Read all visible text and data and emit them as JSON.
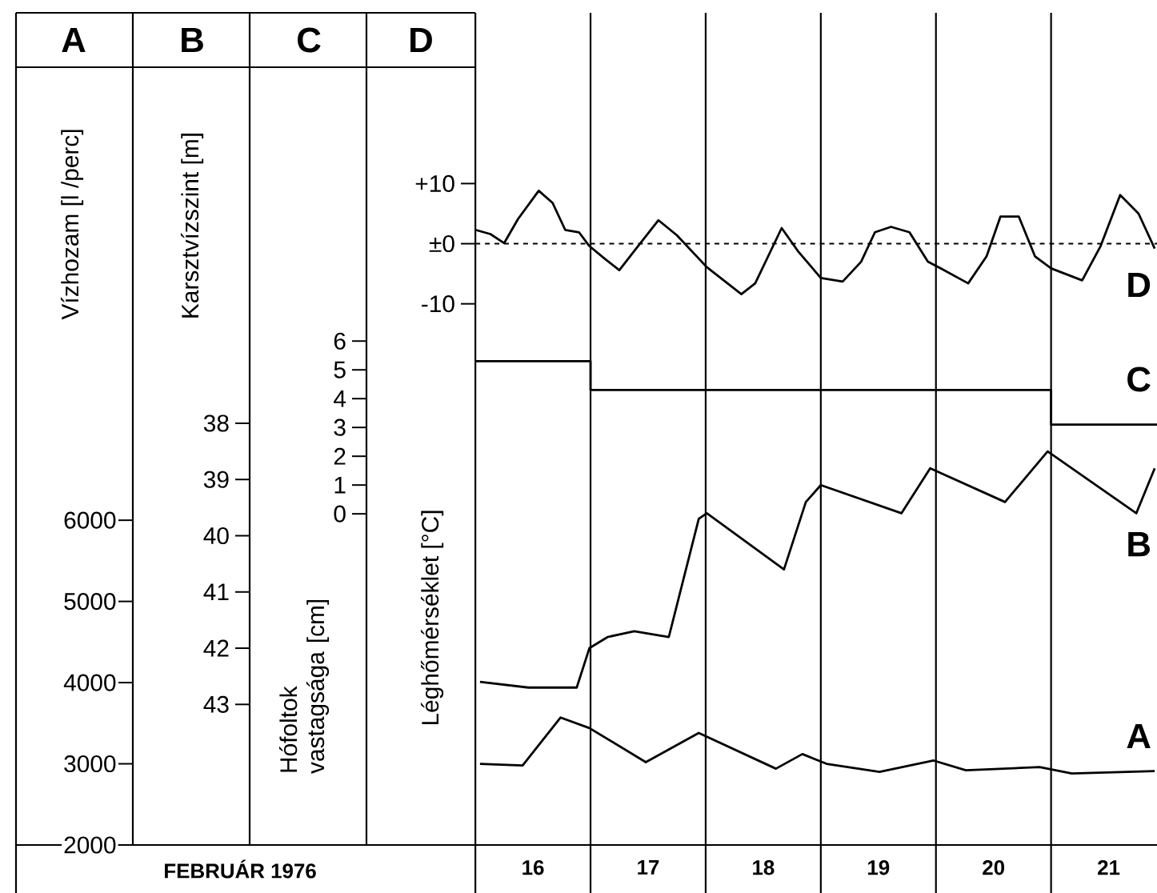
{
  "chart_data": [
    {
      "type": "line",
      "xlabel": "FEBRUÁR 1976",
      "ylabel": "Vízhozam [l /perc]",
      "xlim": [
        12.01,
        21.92
      ],
      "xticks": [
        {
          "value": 16,
          "label": null
        },
        {
          "value": 16.5,
          "label": "16"
        },
        {
          "value": 17.5,
          "label": "17"
        },
        {
          "value": 18.5,
          "label": "18"
        },
        {
          "value": 19.5,
          "label": "19"
        },
        {
          "value": 20.5,
          "label": "20"
        },
        {
          "value": 21.5,
          "label": "21"
        },
        {
          "value": 17,
          "label": null
        },
        {
          "value": 18,
          "label": null
        },
        {
          "value": 19,
          "label": null
        },
        {
          "value": 20,
          "label": null
        },
        {
          "value": 21,
          "label": null
        }
      ],
      "ylim": [
        2000,
        12250
      ],
      "yticks": [
        2000,
        3000,
        4000,
        5000,
        6000
      ],
      "grid": "x",
      "series": [
        {
          "name": "A",
          "color": "#000000",
          "x": [
            16.04,
            16.41,
            16.74,
            16.99,
            17.48,
            17.94,
            18.61,
            18.84,
            19.05,
            19.51,
            19.98,
            20.26,
            20.9,
            21.18,
            21.9
          ],
          "values": [
            3000,
            2980,
            3570,
            3440,
            3020,
            3380,
            2940,
            3120,
            3000,
            2900,
            3040,
            2920,
            2960,
            2880,
            2910
          ]
        }
      ]
    },
    {
      "type": "line",
      "ylabel": "Karsztvízszint [m]",
      "xlim": [
        12.01,
        21.92
      ],
      "ylim": [
        45.5,
        30.7
      ],
      "yticks": [
        38,
        39,
        40,
        41,
        42,
        43
      ],
      "tick_labels": "y",
      "series": [
        {
          "name": "B",
          "color": "#000000",
          "x": [
            16.04,
            16.46,
            16.88,
            16.99,
            17.15,
            17.38,
            17.68,
            17.94,
            18.01,
            18.68,
            18.87,
            19.0,
            19.7,
            19.95,
            20.6,
            20.97,
            21.74,
            21.9
          ],
          "values": [
            42.6,
            42.7,
            42.7,
            42.0,
            41.8,
            41.7,
            41.8,
            39.7,
            39.6,
            40.6,
            39.4,
            39.1,
            39.6,
            38.8,
            39.4,
            38.5,
            39.6,
            38.8
          ]
        }
      ]
    },
    {
      "type": "step",
      "ylabel": "Hófoltok vastagsága [cm]",
      "xlim": [
        12.01,
        21.92
      ],
      "ylim": [
        -11.5,
        17.4
      ],
      "yticks": [
        0,
        1,
        2,
        3,
        4,
        5,
        6
      ],
      "tick_labels": "y",
      "series": [
        {
          "name": "C",
          "color": "#000000",
          "x": [
            16,
            17,
            21,
            21.92
          ],
          "values": [
            5.3,
            4.3,
            3.1,
            3.1
          ]
        }
      ]
    },
    {
      "type": "line",
      "ylabel": "Léghőmérséklet [°C]",
      "xlim": [
        12.01,
        21.92
      ],
      "ylim": [
        -100,
        38.4
      ],
      "yticks": [
        {
          "value": 10,
          "label": "+10"
        },
        {
          "value": 0,
          "label": "±0"
        },
        -10
      ],
      "tick_labels": "y",
      "ref_lines": [
        {
          "axis": "y",
          "value": 0,
          "line_style": "dashed",
          "color": "#000000"
        }
      ],
      "series": [
        {
          "name": "D",
          "color": "#000000",
          "x": [
            16.0,
            16.13,
            16.25,
            16.37,
            16.55,
            16.67,
            16.78,
            16.9,
            16.99,
            17.13,
            17.25,
            17.38,
            17.59,
            17.75,
            18.01,
            18.31,
            18.43,
            18.66,
            18.8,
            19.0,
            19.19,
            19.35,
            19.47,
            19.61,
            19.77,
            19.93,
            20.04,
            20.28,
            20.44,
            20.56,
            20.72,
            20.86,
            21.0,
            21.27,
            21.43,
            21.6,
            21.76,
            21.9
          ],
          "values": [
            2.3,
            1.6,
            0.1,
            4.1,
            8.8,
            6.8,
            2.3,
            1.9,
            -0.4,
            -2.6,
            -4.4,
            -1.2,
            3.9,
            1.4,
            -3.9,
            -8.4,
            -6.6,
            2.6,
            -1.2,
            -5.7,
            -6.3,
            -3.0,
            1.9,
            2.8,
            1.9,
            -3.0,
            -4.1,
            -6.6,
            -2.1,
            4.5,
            4.5,
            -2.1,
            -4.1,
            -6.1,
            -0.4,
            8.1,
            5.0,
            -0.8
          ]
        }
      ]
    }
  ]
}
